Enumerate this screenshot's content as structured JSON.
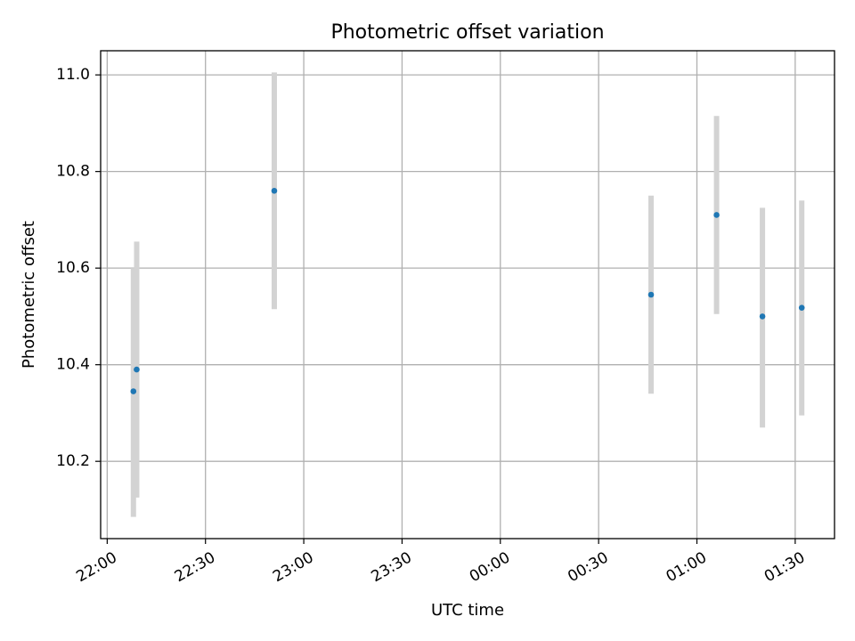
{
  "chart_data": {
    "type": "scatter",
    "title": "Photometric offset variation",
    "xlabel": "UTC time",
    "ylabel": "Photometric offset",
    "grid": true,
    "x_axis": {
      "unit": "UTC time (HH:MM)",
      "range": [
        "21:58",
        "01:42"
      ],
      "ticks": [
        "22:00",
        "22:30",
        "23:00",
        "23:30",
        "00:00",
        "00:30",
        "01:00",
        "01:30"
      ],
      "tick_label_rotation_deg": 30
    },
    "y_axis": {
      "range": [
        10.04,
        11.05
      ],
      "ticks": [
        10.2,
        10.4,
        10.6,
        10.8,
        11.0
      ],
      "tick_labels": [
        "10.2",
        "10.4",
        "10.6",
        "10.8",
        "11.0"
      ]
    },
    "series": [
      {
        "marker_color": "#1f77b4",
        "errorbar_color": "#d3d3d3",
        "points": [
          {
            "x": "22:08",
            "y": 10.345,
            "yerr_low": 10.085,
            "yerr_high": 10.6
          },
          {
            "x": "22:09",
            "y": 10.39,
            "yerr_low": 10.125,
            "yerr_high": 10.655
          },
          {
            "x": "22:51",
            "y": 10.76,
            "yerr_low": 10.515,
            "yerr_high": 11.005
          },
          {
            "x": "00:46",
            "y": 10.545,
            "yerr_low": 10.34,
            "yerr_high": 10.75
          },
          {
            "x": "01:06",
            "y": 10.71,
            "yerr_low": 10.505,
            "yerr_high": 10.915
          },
          {
            "x": "01:20",
            "y": 10.5,
            "yerr_low": 10.27,
            "yerr_high": 10.725
          },
          {
            "x": "01:32",
            "y": 10.518,
            "yerr_low": 10.295,
            "yerr_high": 10.74
          }
        ]
      }
    ]
  }
}
